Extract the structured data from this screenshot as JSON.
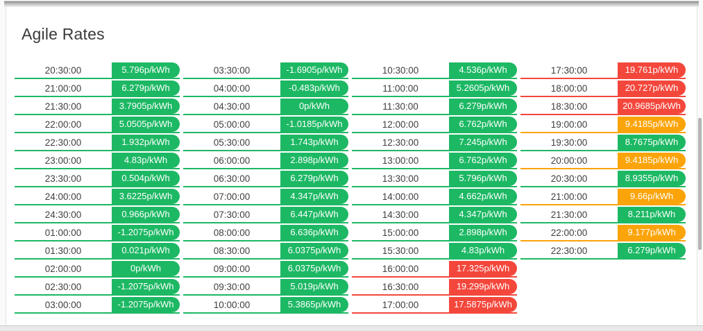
{
  "page": {
    "title": "Agile Rates"
  },
  "colors": {
    "green": "#1db864",
    "red": "#f4473c",
    "orange": "#fba40a"
  },
  "rates": {
    "unit": "p/kWh",
    "columns": [
      {
        "rows": [
          {
            "time": "20:30:00",
            "value": "5.796p/kWh",
            "status": "green"
          },
          {
            "time": "21:00:00",
            "value": "6.279p/kWh",
            "status": "green"
          },
          {
            "time": "21:30:00",
            "value": "3.7905p/kWh",
            "status": "green"
          },
          {
            "time": "22:00:00",
            "value": "5.0505p/kWh",
            "status": "green"
          },
          {
            "time": "22:30:00",
            "value": "1.932p/kWh",
            "status": "green"
          },
          {
            "time": "23:00:00",
            "value": "4.83p/kWh",
            "status": "green"
          },
          {
            "time": "23:30:00",
            "value": "0.504p/kWh",
            "status": "green"
          },
          {
            "time": "24:00:00",
            "value": "3.6225p/kWh",
            "status": "green"
          },
          {
            "time": "24:30:00",
            "value": "0.966p/kWh",
            "status": "green"
          },
          {
            "time": "01:00:00",
            "value": "-1.2075p/kWh",
            "status": "green"
          },
          {
            "time": "01:30:00",
            "value": "0.021p/kWh",
            "status": "green"
          },
          {
            "time": "02:00:00",
            "value": "0p/kWh",
            "status": "green"
          },
          {
            "time": "02:30:00",
            "value": "-1.2075p/kWh",
            "status": "green"
          },
          {
            "time": "03:00:00",
            "value": "-1.2075p/kWh",
            "status": "green"
          }
        ]
      },
      {
        "rows": [
          {
            "time": "03:30:00",
            "value": "-1.6905p/kWh",
            "status": "green"
          },
          {
            "time": "04:00:00",
            "value": "-0.483p/kWh",
            "status": "green"
          },
          {
            "time": "04:30:00",
            "value": "0p/kWh",
            "status": "green"
          },
          {
            "time": "05:00:00",
            "value": "-1.0185p/kWh",
            "status": "green"
          },
          {
            "time": "05:30:00",
            "value": "1.743p/kWh",
            "status": "green"
          },
          {
            "time": "06:00:00",
            "value": "2.898p/kWh",
            "status": "green"
          },
          {
            "time": "06:30:00",
            "value": "6.279p/kWh",
            "status": "green"
          },
          {
            "time": "07:00:00",
            "value": "4.347p/kWh",
            "status": "green"
          },
          {
            "time": "07:30:00",
            "value": "6.447p/kWh",
            "status": "green"
          },
          {
            "time": "08:00:00",
            "value": "6.636p/kWh",
            "status": "green"
          },
          {
            "time": "08:30:00",
            "value": "6.0375p/kWh",
            "status": "green"
          },
          {
            "time": "09:00:00",
            "value": "6.0375p/kWh",
            "status": "green"
          },
          {
            "time": "09:30:00",
            "value": "5.019p/kWh",
            "status": "green"
          },
          {
            "time": "10:00:00",
            "value": "5.3865p/kWh",
            "status": "green"
          }
        ]
      },
      {
        "rows": [
          {
            "time": "10:30:00",
            "value": "4.536p/kWh",
            "status": "green"
          },
          {
            "time": "11:00:00",
            "value": "5.2605p/kWh",
            "status": "green"
          },
          {
            "time": "11:30:00",
            "value": "6.279p/kWh",
            "status": "green"
          },
          {
            "time": "12:00:00",
            "value": "6.762p/kWh",
            "status": "green"
          },
          {
            "time": "12:30:00",
            "value": "7.245p/kWh",
            "status": "green"
          },
          {
            "time": "13:00:00",
            "value": "6.762p/kWh",
            "status": "green"
          },
          {
            "time": "13:30:00",
            "value": "5.796p/kWh",
            "status": "green"
          },
          {
            "time": "14:00:00",
            "value": "4.662p/kWh",
            "status": "green"
          },
          {
            "time": "14:30:00",
            "value": "4.347p/kWh",
            "status": "green"
          },
          {
            "time": "15:00:00",
            "value": "2.898p/kWh",
            "status": "green"
          },
          {
            "time": "15:30:00",
            "value": "4.83p/kWh",
            "status": "green"
          },
          {
            "time": "16:00:00",
            "value": "17.325p/kWh",
            "status": "red"
          },
          {
            "time": "16:30:00",
            "value": "19.299p/kWh",
            "status": "red"
          },
          {
            "time": "17:00:00",
            "value": "17.5875p/kWh",
            "status": "red"
          }
        ]
      },
      {
        "rows": [
          {
            "time": "17:30:00",
            "value": "19.761p/kWh",
            "status": "red"
          },
          {
            "time": "18:00:00",
            "value": "20.727p/kWh",
            "status": "red"
          },
          {
            "time": "18:30:00",
            "value": "20.9685p/kWh",
            "status": "red"
          },
          {
            "time": "19:00:00",
            "value": "9.4185p/kWh",
            "status": "orange"
          },
          {
            "time": "19:30:00",
            "value": "8.7675p/kWh",
            "status": "green"
          },
          {
            "time": "20:00:00",
            "value": "9.4185p/kWh",
            "status": "orange"
          },
          {
            "time": "20:30:00",
            "value": "8.9355p/kWh",
            "status": "green"
          },
          {
            "time": "21:00:00",
            "value": "9.66p/kWh",
            "status": "orange"
          },
          {
            "time": "21:30:00",
            "value": "8.211p/kWh",
            "status": "green"
          },
          {
            "time": "22:00:00",
            "value": "9.177p/kWh",
            "status": "orange"
          },
          {
            "time": "22:30:00",
            "value": "6.279p/kWh",
            "status": "green"
          }
        ]
      }
    ]
  }
}
